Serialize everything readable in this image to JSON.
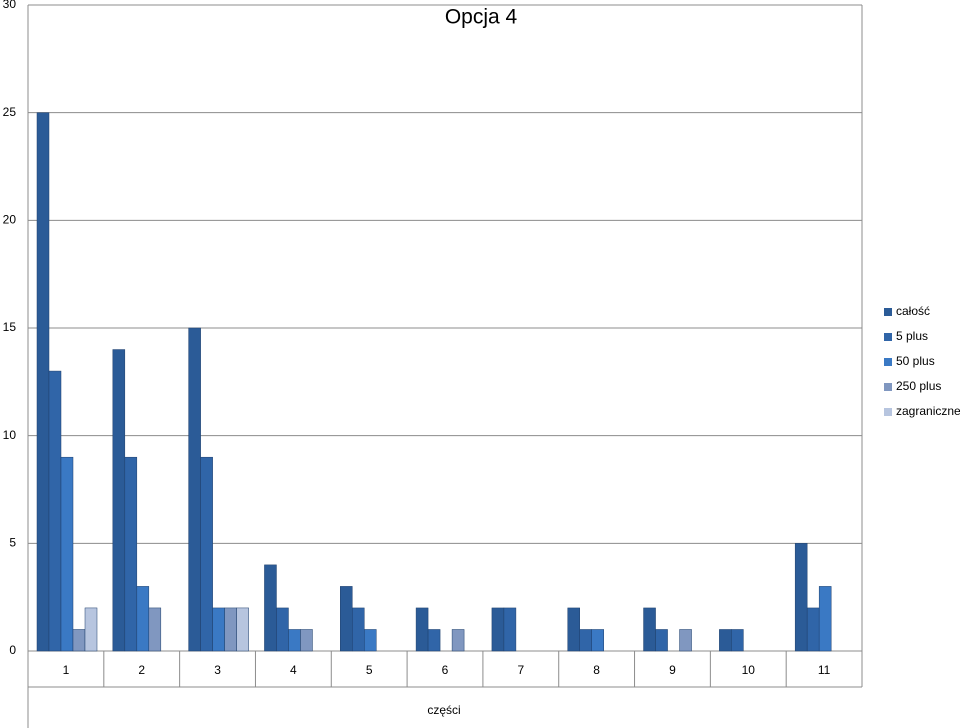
{
  "chart_data": {
    "type": "bar",
    "title": "Opcja 4",
    "x_label": "części",
    "categories": [
      "1",
      "2",
      "3",
      "4",
      "5",
      "6",
      "7",
      "8",
      "9",
      "10",
      "11"
    ],
    "series": [
      {
        "name": "całość",
        "color": "#2b5b97",
        "values": [
          25,
          14,
          15,
          4,
          3,
          2,
          2,
          2,
          2,
          1,
          5
        ]
      },
      {
        "name": "5 plus",
        "color": "#3065a8",
        "values": [
          13,
          9,
          9,
          2,
          2,
          1,
          2,
          1,
          1,
          1,
          2
        ]
      },
      {
        "name": "50 plus",
        "color": "#3a79c4",
        "values": [
          9,
          3,
          2,
          1,
          1,
          0,
          0,
          1,
          0,
          0,
          3
        ]
      },
      {
        "name": "250 plus",
        "color": "#8097c0",
        "values": [
          1,
          2,
          2,
          1,
          0,
          1,
          0,
          0,
          1,
          0,
          0
        ]
      },
      {
        "name": "zagraniczne",
        "color": "#b7c5df",
        "values": [
          2,
          0,
          2,
          0,
          0,
          0,
          0,
          0,
          0,
          0,
          0
        ]
      }
    ],
    "ylim": [
      0,
      30
    ],
    "yticks": [
      0,
      5,
      10,
      15,
      20,
      25,
      30
    ],
    "grid": true,
    "legend": "right"
  }
}
